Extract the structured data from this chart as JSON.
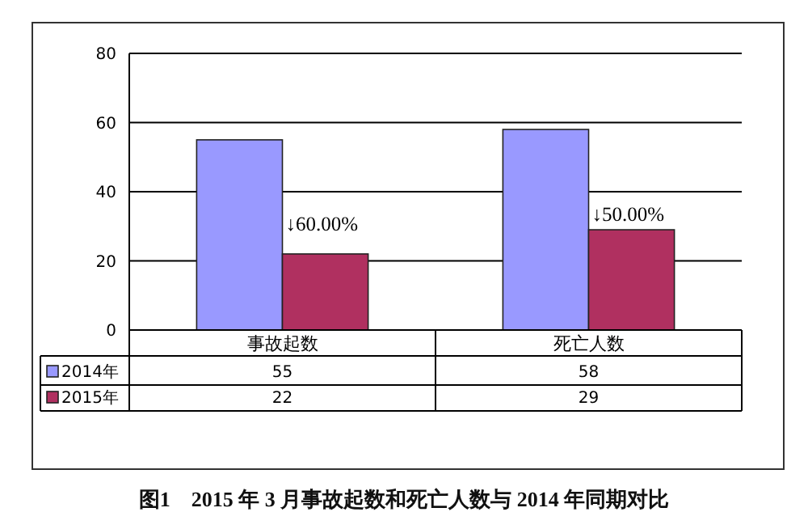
{
  "chart_data": {
    "type": "bar",
    "title": "图1　2015 年 3 月事故起数和死亡人数与 2014 年同期对比",
    "categories": [
      "事故起数",
      "死亡人数"
    ],
    "series": [
      {
        "name": "2014年",
        "color": "#9999ff",
        "values": [
          55,
          58
        ]
      },
      {
        "name": "2015年",
        "color": "#b03060",
        "values": [
          22,
          29
        ]
      }
    ],
    "ylim": [
      0,
      80
    ],
    "yticks": [
      0,
      20,
      40,
      60,
      80
    ],
    "grid": "y",
    "legend": "bottom left",
    "data_labels": true,
    "annotations": [
      {
        "text": "↓60.00%",
        "x": "事故起数",
        "y": 31
      },
      {
        "text": "↓50.00%",
        "x": "死亡人数",
        "y": 34
      }
    ]
  }
}
